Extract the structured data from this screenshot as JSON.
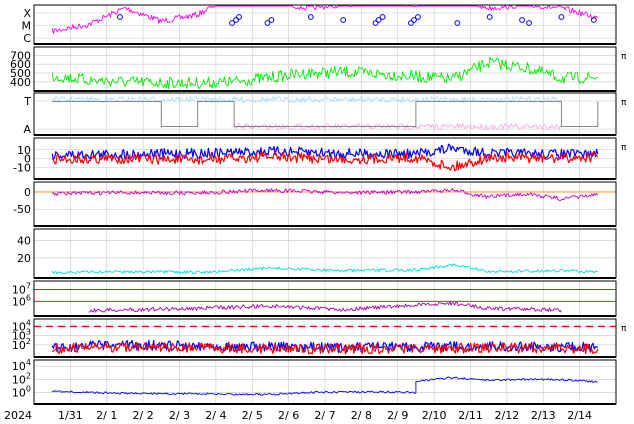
{
  "chart_data": {
    "type": "line",
    "x_start": "2024-01-30",
    "x_end": "2024-02-14",
    "x_ticks": [
      {
        "date": "2024-01-31",
        "label": "1/31"
      },
      {
        "date": "2024-02-01",
        "label": "2/ 1"
      },
      {
        "date": "2024-02-02",
        "label": "2/ 2"
      },
      {
        "date": "2024-02-03",
        "label": "2/ 3"
      },
      {
        "date": "2024-02-04",
        "label": "2/ 4"
      },
      {
        "date": "2024-02-05",
        "label": "2/ 5"
      },
      {
        "date": "2024-02-06",
        "label": "2/ 6"
      },
      {
        "date": "2024-02-07",
        "label": "2/ 7"
      },
      {
        "date": "2024-02-08",
        "label": "2/ 8"
      },
      {
        "date": "2024-02-09",
        "label": "2/ 9"
      },
      {
        "date": "2024-02-10",
        "label": "2/10"
      },
      {
        "date": "2024-02-11",
        "label": "2/11"
      },
      {
        "date": "2024-02-12",
        "label": "2/12"
      },
      {
        "date": "2024-02-13",
        "label": "2/13"
      },
      {
        "date": "2024-02-14",
        "label": "2/14"
      }
    ],
    "year_label": "2024",
    "grid": true,
    "panels": [
      {
        "id": "xray",
        "scale": "categorical",
        "ticks": [
          "X",
          "M",
          "C"
        ],
        "series": [
          {
            "color": "#ff00ff",
            "points": [
              [
                "2024-01-30",
                0.3
              ],
              [
                "2024-01-31",
                0.5
              ],
              [
                "2024-02-01",
                1.0
              ],
              [
                "2024-02-02",
                0.6
              ],
              [
                "2024-02-03",
                0.8
              ],
              [
                "2024-02-04",
                1.4
              ],
              [
                "2024-02-05",
                1.2
              ],
              [
                "2024-02-06",
                1.0
              ],
              [
                "2024-02-07",
                1.1
              ],
              [
                "2024-02-08",
                1.2
              ],
              [
                "2024-02-09",
                1.1
              ],
              [
                "2024-02-10",
                1.3
              ],
              [
                "2024-02-11",
                1.0
              ],
              [
                "2024-02-12",
                1.1
              ],
              [
                "2024-02-13",
                1.0
              ],
              [
                "2024-02-14",
                0.7
              ]
            ]
          }
        ],
        "flare_markers": [
          "2024-02-01",
          "2024-02-04",
          "2024-02-04",
          "2024-02-04",
          "2024-02-05",
          "2024-02-05",
          "2024-02-06",
          "2024-02-07",
          "2024-02-08",
          "2024-02-08",
          "2024-02-08",
          "2024-02-09",
          "2024-02-09",
          "2024-02-09",
          "2024-02-10",
          "2024-02-11",
          "2024-02-12",
          "2024-02-12",
          "2024-02-13",
          "2024-02-14"
        ]
      },
      {
        "id": "speed",
        "ticks": [
          400,
          500,
          600,
          700
        ],
        "ylim": [
          330,
          760
        ],
        "right_label": "π",
        "series": [
          {
            "color": "#00ee00",
            "points": [
              [
                "2024-01-30",
                470
              ],
              [
                "2024-01-31",
                420
              ],
              [
                "2024-02-01",
                400
              ],
              [
                "2024-02-02",
                390
              ],
              [
                "2024-02-03",
                385
              ],
              [
                "2024-02-04",
                400
              ],
              [
                "2024-02-05",
                450
              ],
              [
                "2024-02-06",
                500
              ],
              [
                "2024-02-07",
                510
              ],
              [
                "2024-02-08",
                490
              ],
              [
                "2024-02-09",
                460
              ],
              [
                "2024-02-10",
                430
              ],
              [
                "2024-02-11",
                620
              ],
              [
                "2024-02-12",
                560
              ],
              [
                "2024-02-13",
                440
              ],
              [
                "2024-02-14",
                450
              ]
            ]
          }
        ]
      },
      {
        "id": "imf-sector",
        "scale": "categorical",
        "ticks": [
          "T",
          "A"
        ],
        "right_label": "π",
        "series": [
          {
            "color": "#aaddff",
            "points": [
              [
                "2024-01-30",
                0.9
              ],
              [
                "2024-02-01",
                0.9
              ],
              [
                "2024-02-03",
                0.9
              ],
              [
                "2024-02-05",
                0.9
              ],
              [
                "2024-02-07",
                0.9
              ],
              [
                "2024-02-09",
                0.9
              ],
              [
                "2024-02-11",
                0.9
              ],
              [
                "2024-02-13",
                0.9
              ]
            ]
          },
          {
            "color": "#ffaaee",
            "points": [
              [
                "2024-02-04",
                0.15
              ],
              [
                "2024-02-06",
                0.15
              ],
              [
                "2024-02-08",
                0.15
              ],
              [
                "2024-02-13",
                0.15
              ]
            ]
          },
          {
            "color": "#777777",
            "points": [
              [
                "2024-01-30",
                0.85
              ],
              [
                "2024-02-02",
                0.85
              ],
              [
                "2024-02-02",
                0.15
              ],
              [
                "2024-02-03",
                0.15
              ],
              [
                "2024-02-03",
                0.85
              ],
              [
                "2024-02-04",
                0.85
              ],
              [
                "2024-02-04",
                0.15
              ],
              [
                "2024-02-09",
                0.15
              ],
              [
                "2024-02-09",
                0.85
              ],
              [
                "2024-02-13",
                0.85
              ],
              [
                "2024-02-13",
                0.15
              ],
              [
                "2024-02-14",
                0.15
              ],
              [
                "2024-02-14",
                0.85
              ]
            ]
          }
        ]
      },
      {
        "id": "bt-bz",
        "ticks": [
          -10,
          0,
          10
        ],
        "ylim": [
          -20,
          20
        ],
        "right_label": "π",
        "series": [
          {
            "color": "#0000ff",
            "points": [
              [
                "2024-01-30",
                4
              ],
              [
                "2024-02-01",
                5
              ],
              [
                "2024-02-03",
                6
              ],
              [
                "2024-02-05",
                8
              ],
              [
                "2024-02-07",
                6
              ],
              [
                "2024-02-09",
                5
              ],
              [
                "2024-02-10",
                12
              ],
              [
                "2024-02-11",
                6
              ],
              [
                "2024-02-13",
                5
              ],
              [
                "2024-02-14",
                5
              ]
            ]
          },
          {
            "color": "#ff0000",
            "points": [
              [
                "2024-01-30",
                -1
              ],
              [
                "2024-02-01",
                0
              ],
              [
                "2024-02-03",
                -2
              ],
              [
                "2024-02-05",
                2
              ],
              [
                "2024-02-07",
                -1
              ],
              [
                "2024-02-09",
                1
              ],
              [
                "2024-02-10",
                -10
              ],
              [
                "2024-02-11",
                1
              ],
              [
                "2024-02-13",
                0
              ],
              [
                "2024-02-14",
                2
              ]
            ]
          }
        ]
      },
      {
        "id": "dst",
        "ticks": [
          -50,
          0
        ],
        "ylim": [
          -90,
          20
        ],
        "series": [
          {
            "color": "#ff8800",
            "points": [
              [
                "2024-01-30",
                0
              ],
              [
                "2024-02-14",
                0
              ]
            ]
          },
          {
            "color": "#cc00cc",
            "points": [
              [
                "2024-01-30",
                -5
              ],
              [
                "2024-02-01",
                -2
              ],
              [
                "2024-02-03",
                -3
              ],
              [
                "2024-02-05",
                5
              ],
              [
                "2024-02-07",
                -2
              ],
              [
                "2024-02-09",
                0
              ],
              [
                "2024-02-10",
                5
              ],
              [
                "2024-02-11",
                -15
              ],
              [
                "2024-02-12",
                -5
              ],
              [
                "2024-02-13",
                -20
              ],
              [
                "2024-02-14",
                -8
              ]
            ]
          }
        ]
      },
      {
        "id": "kp",
        "ticks": [
          20,
          40
        ],
        "ylim": [
          0,
          50
        ],
        "series": [
          {
            "color": "#00dddd",
            "points": [
              [
                "2024-01-30",
                3
              ],
              [
                "2024-02-01",
                4
              ],
              [
                "2024-02-03",
                3
              ],
              [
                "2024-02-05",
                8
              ],
              [
                "2024-02-07",
                5
              ],
              [
                "2024-02-09",
                6
              ],
              [
                "2024-02-10",
                12
              ],
              [
                "2024-02-11",
                4
              ],
              [
                "2024-02-13",
                5
              ],
              [
                "2024-02-14",
                4
              ]
            ]
          }
        ]
      },
      {
        "id": "proton",
        "scale": "log",
        "ticks": [
          "10^6",
          "10^7"
        ],
        "ylim": [
          100000,
          30000000
        ],
        "series": [
          {
            "color": "#dd0000",
            "points": [
              [
                "2024-01-30",
                10000000
              ],
              [
                "2024-02-14",
                10000000
              ]
            ]
          },
          {
            "color": "#dd0000",
            "points": [
              [
                "2024-01-30",
                1000000
              ],
              [
                "2024-02-14",
                1000000
              ]
            ]
          },
          {
            "color": "#aa00aa",
            "points": [
              [
                "2024-01-31",
                160000
              ],
              [
                "2024-02-03",
                250000
              ],
              [
                "2024-02-05",
                400000
              ],
              [
                "2024-02-07",
                200000
              ],
              [
                "2024-02-10",
                700000
              ],
              [
                "2024-02-11",
                250000
              ],
              [
                "2024-02-13",
                180000
              ]
            ]
          }
        ]
      },
      {
        "id": "electron",
        "scale": "log",
        "ticks": [
          "10^2",
          "10^3",
          "10^4"
        ],
        "ylim": [
          10,
          30000
        ],
        "right_label": "π",
        "series": [
          {
            "color": "#0000ff",
            "points": [
              [
                "2024-01-30",
                60
              ],
              [
                "2024-02-01",
                90
              ],
              [
                "2024-02-03",
                80
              ],
              [
                "2024-02-05",
                60
              ],
              [
                "2024-02-07",
                50
              ],
              [
                "2024-02-09",
                60
              ],
              [
                "2024-02-11",
                70
              ],
              [
                "2024-02-13",
                60
              ],
              [
                "2024-02-14",
                50
              ]
            ]
          },
          {
            "color": "#ff0000",
            "points": [
              [
                "2024-01-30",
                40
              ],
              [
                "2024-02-01",
                60
              ],
              [
                "2024-02-03",
                50
              ],
              [
                "2024-02-05",
                40
              ],
              [
                "2024-02-07",
                35
              ],
              [
                "2024-02-09",
                40
              ],
              [
                "2024-02-11",
                45
              ],
              [
                "2024-02-13",
                40
              ],
              [
                "2024-02-14",
                35
              ]
            ]
          },
          {
            "color": "#ff0000",
            "style": "dashed",
            "points": [
              [
                "2024-01-30",
                10000
              ],
              [
                "2024-02-14",
                10000
              ]
            ]
          }
        ]
      },
      {
        "id": "density",
        "scale": "log",
        "ticks": [
          "10^0",
          "10^2",
          "10^4"
        ],
        "ylim": [
          0.05,
          30000
        ],
        "series": [
          {
            "color": "#0000ff",
            "points": [
              [
                "2024-01-30",
                1.5
              ],
              [
                "2024-02-01",
                0.7
              ],
              [
                "2024-02-03",
                0.6
              ],
              [
                "2024-02-05",
                0.5
              ],
              [
                "2024-02-06",
                1.0
              ],
              [
                "2024-02-08",
                1.2
              ],
              [
                "2024-02-09",
                1.0
              ],
              [
                "2024-02-09",
                50
              ],
              [
                "2024-02-10",
                180
              ],
              [
                "2024-02-11",
                70
              ],
              [
                "2024-02-12",
                100
              ],
              [
                "2024-02-13",
                90
              ],
              [
                "2024-02-14",
                40
              ]
            ]
          }
        ]
      }
    ]
  }
}
